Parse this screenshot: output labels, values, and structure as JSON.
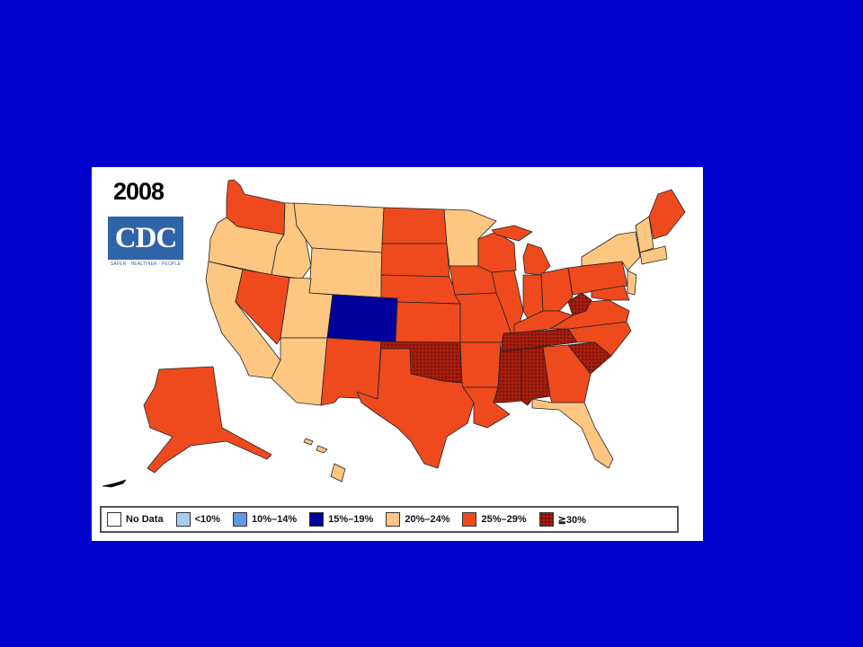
{
  "map": {
    "year": "2008",
    "logo": {
      "text": "CDC",
      "tagline": "SAFER · HEALTHIER · PEOPLE"
    },
    "categories": {
      "none": "#ffffff",
      "lt10": "#a6cdf5",
      "10_14": "#5f9ae8",
      "15_19": "#00009a",
      "20_24": "#fdc681",
      "25_29": "#ef4a1e",
      "ge30": "#a41d0e"
    },
    "legend": [
      {
        "label": "No Data",
        "color": "#ffffff"
      },
      {
        "label": "<10%",
        "color": "#a6cdf5"
      },
      {
        "label": "10%–14%",
        "color": "#5f9ae8"
      },
      {
        "label": "15%–19%",
        "color": "#00009a"
      },
      {
        "label": "20%–24%",
        "color": "#fdc681"
      },
      {
        "label": "25%–29%",
        "color": "#ef4a1e"
      },
      {
        "label": "≧30%",
        "color": "#a41d0e"
      }
    ]
  }
}
